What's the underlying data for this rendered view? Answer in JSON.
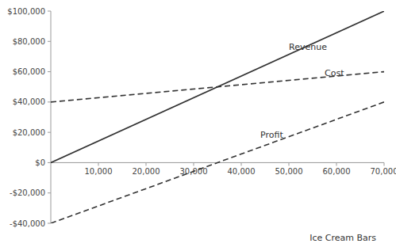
{
  "chart_data": {
    "type": "line",
    "x": [
      0,
      70000
    ],
    "series": [
      {
        "name": "Revenue",
        "values": [
          0,
          99999.9
        ],
        "line_style": "solid"
      },
      {
        "name": "Cost",
        "values": [
          40000,
          59999.7
        ],
        "line_style": "dashed"
      },
      {
        "name": "Profit",
        "values": [
          -40000,
          40000.2
        ],
        "line_style": "dashed"
      }
    ],
    "color": "#333333",
    "x_label": "Ice Cream Bars",
    "annotations": [
      {
        "text": "Revenue",
        "x": 50000,
        "y": 73000
      },
      {
        "text": "Cost",
        "x": 57500,
        "y": 55500
      },
      {
        "text": "Profit",
        "x": 44000,
        "y": 15000
      }
    ],
    "xlim": [
      0,
      70000
    ],
    "ylim": [
      -40000,
      100000
    ],
    "xticks": [
      {
        "value": 10000,
        "label": "10,000"
      },
      {
        "value": 20000,
        "label": "20,000"
      },
      {
        "value": 30000,
        "label": "30,000"
      },
      {
        "value": 40000,
        "label": "40,000"
      },
      {
        "value": 50000,
        "label": "50,000"
      },
      {
        "value": 60000,
        "label": "60,000"
      },
      {
        "value": 70000,
        "label": "70,000"
      }
    ],
    "yticks": [
      {
        "value": -40000,
        "label": "-$40,000"
      },
      {
        "value": -20000,
        "label": "-$20,000"
      },
      {
        "value": 0,
        "label": "$0"
      },
      {
        "value": 20000,
        "label": "$20,000"
      },
      {
        "value": 40000,
        "label": "$40,000"
      },
      {
        "value": 60000,
        "label": "$60,000"
      },
      {
        "value": 80000,
        "label": "$80,000"
      },
      {
        "value": 100000,
        "label": "$100,000"
      }
    ],
    "grid": false
  }
}
